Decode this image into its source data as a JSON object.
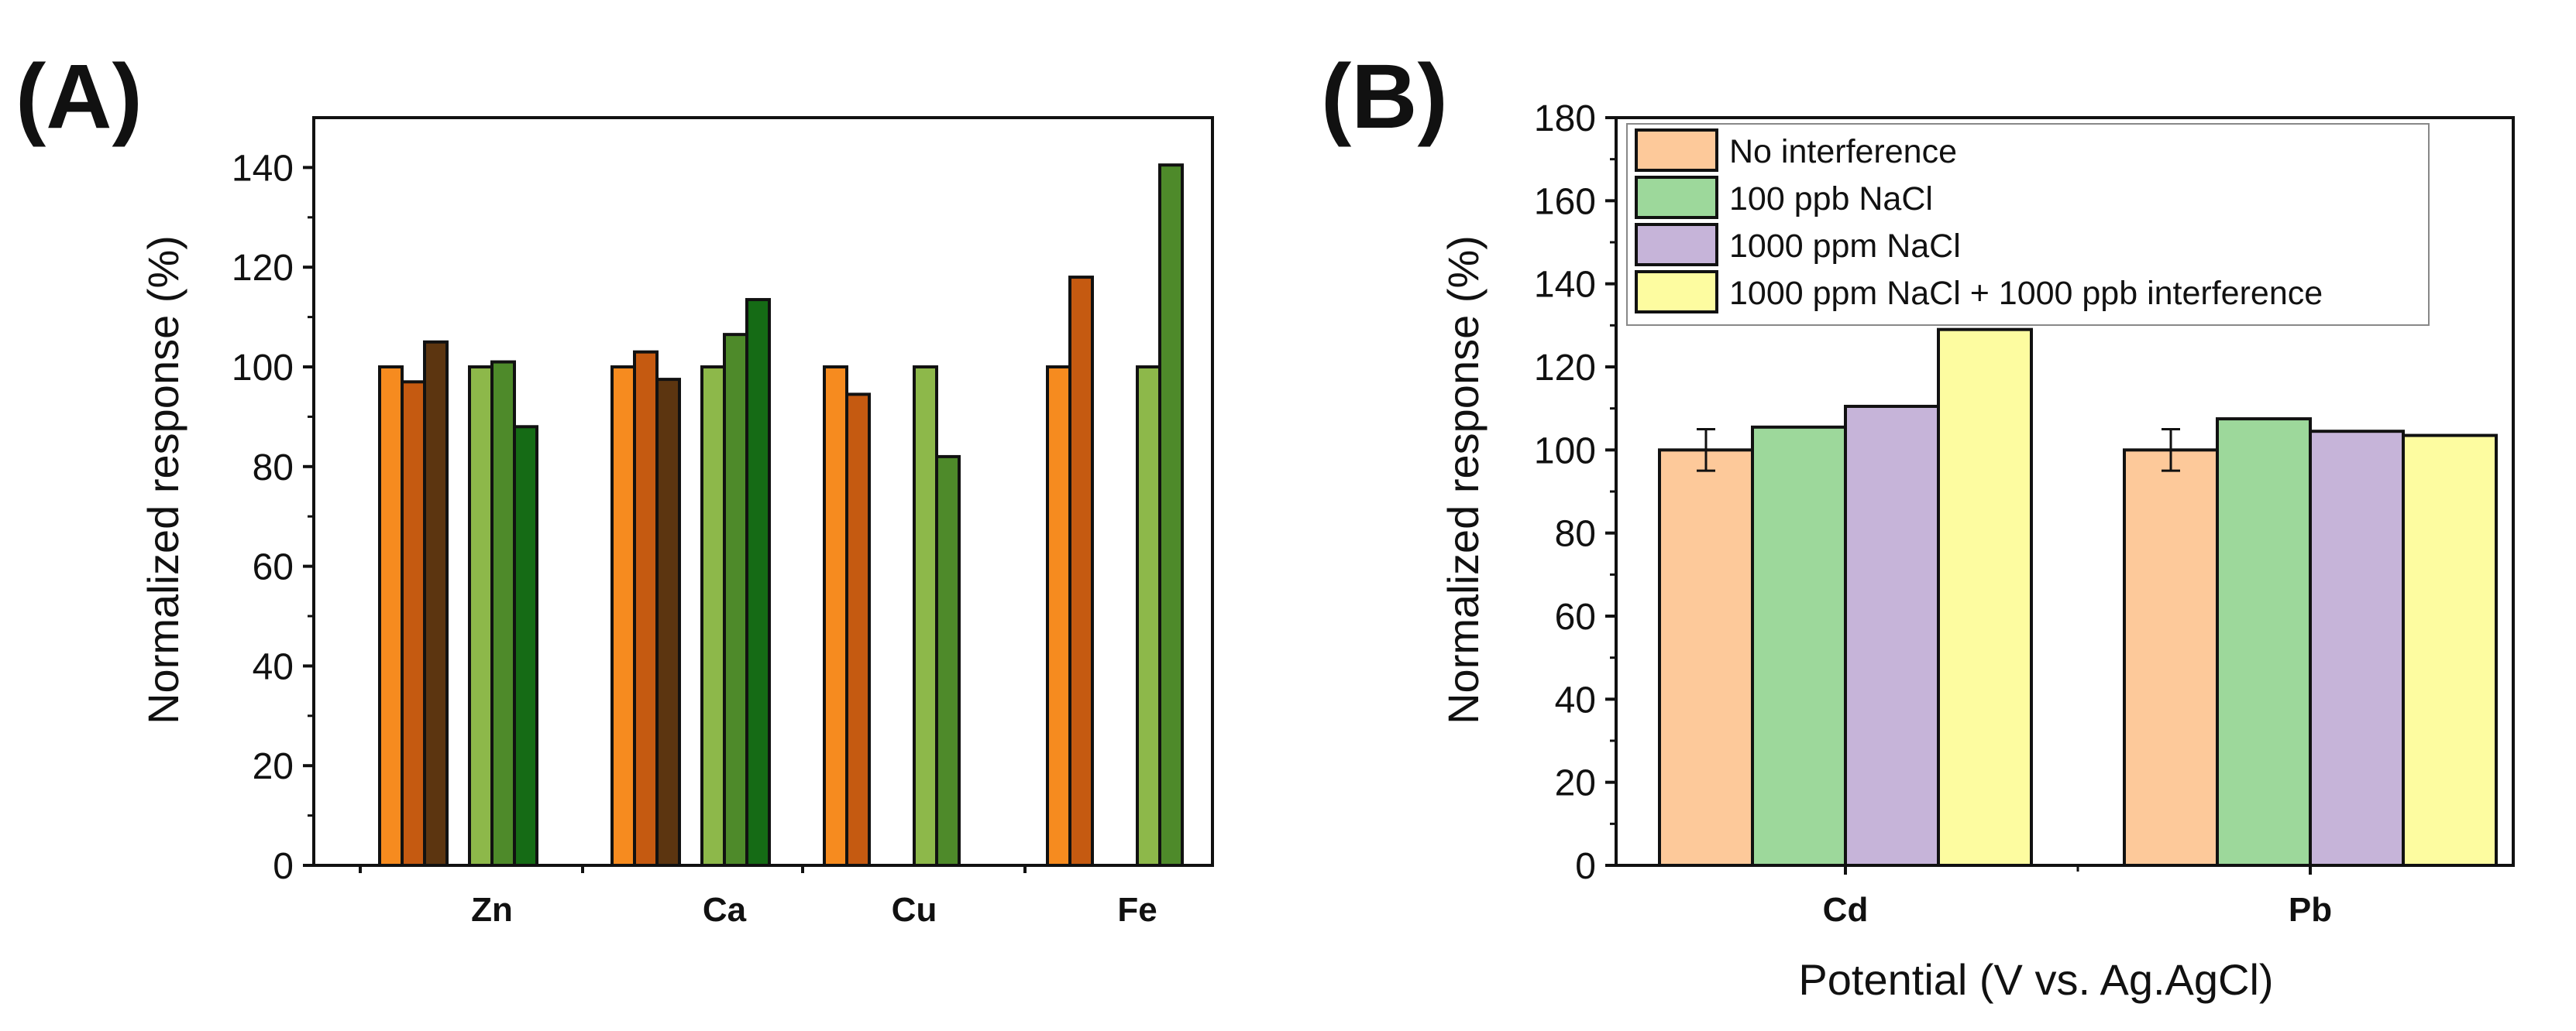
{
  "chart_data": [
    {
      "panel_label": "(A)",
      "type": "bar",
      "title": "",
      "xlabel": "",
      "ylabel": "Normalized response (%)",
      "ylim": [
        0,
        150
      ],
      "yticks": [
        0,
        20,
        40,
        60,
        80,
        100,
        120,
        140
      ],
      "categories": [
        "Zn",
        "Ca",
        "Cu",
        "Fe"
      ],
      "groups": [
        {
          "category": "Zn",
          "bars": [
            {
              "value": 100,
              "color": "#f68b1f"
            },
            {
              "value": 97,
              "color": "#c55a11"
            },
            {
              "value": 105,
              "color": "#5c3510"
            },
            {
              "value": 100,
              "color": "#8db84a"
            },
            {
              "value": 101,
              "color": "#4e8a2a"
            },
            {
              "value": 88,
              "color": "#156b15"
            }
          ]
        },
        {
          "category": "Ca",
          "bars": [
            {
              "value": 100,
              "color": "#f68b1f"
            },
            {
              "value": 103,
              "color": "#c55a11"
            },
            {
              "value": 97.5,
              "color": "#5c3510"
            },
            {
              "value": 100,
              "color": "#8db84a"
            },
            {
              "value": 106.5,
              "color": "#4e8a2a"
            },
            {
              "value": 113.5,
              "color": "#156b15"
            }
          ]
        },
        {
          "category": "Cu",
          "bars": [
            {
              "value": 100,
              "color": "#f68b1f"
            },
            {
              "value": 94.5,
              "color": "#c55a11"
            },
            {
              "value": 100,
              "color": "#8db84a"
            },
            {
              "value": 82,
              "color": "#4e8a2a"
            }
          ]
        },
        {
          "category": "Fe",
          "bars": [
            {
              "value": 100,
              "color": "#f68b1f"
            },
            {
              "value": 118,
              "color": "#c55a11"
            },
            {
              "value": 100,
              "color": "#8db84a"
            },
            {
              "value": 140.5,
              "color": "#4e8a2a"
            }
          ]
        }
      ]
    },
    {
      "panel_label": "(B)",
      "type": "bar",
      "title": "",
      "xlabel": "Potential (V vs. Ag.AgCl)",
      "ylabel": "Normalized response (%)",
      "ylim": [
        0,
        180
      ],
      "yticks": [
        0,
        20,
        40,
        60,
        80,
        100,
        120,
        140,
        160,
        180
      ],
      "categories": [
        "Cd",
        "Pb"
      ],
      "legend_position": "top-left",
      "series": [
        {
          "name": "No interference",
          "color": "#fdc99a",
          "values": [
            100,
            100
          ],
          "errors": [
            5,
            5
          ]
        },
        {
          "name": "100 ppb NaCl",
          "color": "#9dd89b",
          "values": [
            105.5,
            107.5
          ],
          "errors": [
            null,
            null
          ]
        },
        {
          "name": "1000 ppm NaCl",
          "color": "#c6b4d9",
          "values": [
            110.5,
            104.5
          ],
          "errors": [
            null,
            null
          ]
        },
        {
          "name": "1000 ppm NaCl + 1000 ppb interference",
          "color": "#fdfca0",
          "values": [
            129,
            103.5
          ],
          "errors": [
            null,
            null
          ]
        }
      ]
    }
  ]
}
